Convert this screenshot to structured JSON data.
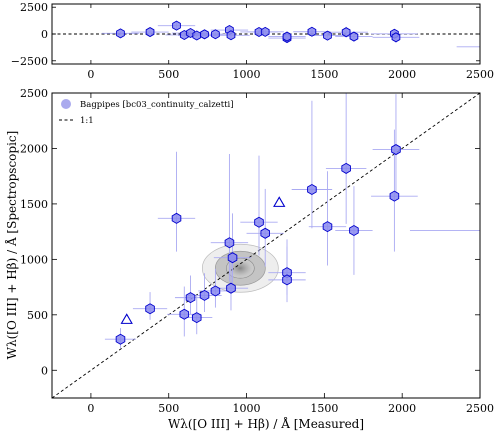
{
  "chart_data": [
    {
      "type": "scatter",
      "panel": "residual",
      "x": [
        190,
        380,
        550,
        600,
        640,
        680,
        730,
        800,
        890,
        900,
        1080,
        1120,
        1260,
        1260,
        1420,
        1520,
        1640,
        1690,
        1950,
        1960
      ],
      "y": [
        60,
        180,
        780,
        -90,
        90,
        -140,
        -30,
        -20,
        370,
        -120,
        190,
        200,
        -380,
        -240,
        210,
        -150,
        170,
        -240,
        20,
        -310
      ],
      "xerr": [
        120,
        120,
        120,
        120,
        120,
        120,
        120,
        120,
        120,
        120,
        120,
        120,
        120,
        120,
        120,
        120,
        140,
        120,
        150,
        150
      ],
      "yerr": [
        120,
        150,
        450,
        250,
        200,
        200,
        150,
        150,
        400,
        400,
        350,
        300,
        200,
        200,
        350,
        300,
        500,
        350,
        350,
        500
      ],
      "xlim": [
        -250,
        2500
      ],
      "ylim": [
        -2800,
        2800
      ],
      "xticks": [
        0,
        500,
        1000,
        1500,
        2000,
        2500
      ],
      "yticks": [
        -2500,
        0,
        2500
      ],
      "hline": 0
    },
    {
      "type": "scatter",
      "panel": "main",
      "xlabel": "Wλ([O III] + Hβ) / Å  [Measured]",
      "ylabel": "Wλ([O III] + Hβ) / Å  [Spectropscopic]",
      "xlim": [
        -250,
        2500
      ],
      "ylim": [
        -250,
        2500
      ],
      "xticks": [
        0,
        500,
        1000,
        1500,
        2000,
        2500
      ],
      "yticks": [
        0,
        500,
        1000,
        1500,
        2000,
        2500
      ],
      "legend": {
        "position": "top-left",
        "entries": [
          "Bagpipes [bc03_continuity_calzetti]",
          "1:1"
        ]
      },
      "series": [
        {
          "name": "Bagpipes [bc03_continuity_calzetti]",
          "marker": "hexagon",
          "x": [
            190,
            380,
            550,
            600,
            640,
            680,
            730,
            800,
            890,
            900,
            910,
            1080,
            1120,
            1260,
            1260,
            1420,
            1520,
            1640,
            1690,
            1950,
            1960
          ],
          "y": [
            280,
            555,
            1370,
            505,
            655,
            475,
            675,
            715,
            1150,
            740,
            1015,
            1335,
            1235,
            880,
            815,
            1630,
            1295,
            1820,
            1260,
            1570,
            1990
          ],
          "xerr": [
            100,
            110,
            120,
            110,
            100,
            100,
            110,
            110,
            120,
            110,
            120,
            120,
            120,
            120,
            120,
            130,
            120,
            130,
            120,
            150,
            150
          ],
          "yerr_low": [
            80,
            100,
            300,
            200,
            150,
            150,
            150,
            150,
            350,
            200,
            250,
            300,
            300,
            200,
            200,
            350,
            350,
            500,
            400,
            500,
            400
          ],
          "yerr_high": [
            100,
            150,
            600,
            250,
            200,
            200,
            200,
            200,
            800,
            300,
            400,
            600,
            400,
            300,
            300,
            800,
            500,
            700,
            400,
            600,
            500
          ]
        },
        {
          "name": "",
          "marker": "triangle-open",
          "x": [
            230,
            1210
          ],
          "y": [
            455,
            1510
          ],
          "yerr_low": [
            0,
            0
          ],
          "yerr_high": [
            0,
            0
          ]
        },
        {
          "name": "1:1",
          "type": "line",
          "x": [
            -250,
            2500
          ],
          "y": [
            -250,
            2500
          ]
        }
      ],
      "density_contours": {
        "center_x": 960,
        "center_y": 920,
        "levels": 3
      }
    }
  ]
}
